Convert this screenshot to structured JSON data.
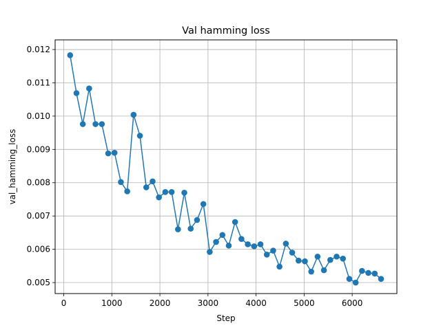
{
  "chart_data": {
    "type": "line",
    "title": "Val hamming loss",
    "xlabel": "Step",
    "ylabel": "val_hamming_loss",
    "xlim": [
      -180,
      6930
    ],
    "ylim": [
      0.00467,
      0.01229
    ],
    "xticks": [
      0,
      1000,
      2000,
      3000,
      4000,
      5000,
      6000
    ],
    "xtick_labels": [
      "0",
      "1000",
      "2000",
      "3000",
      "4000",
      "5000",
      "6000"
    ],
    "yticks": [
      0.005,
      0.006,
      0.007,
      0.008,
      0.009,
      0.01,
      0.011,
      0.012
    ],
    "ytick_labels": [
      "0.005",
      "0.006",
      "0.007",
      "0.008",
      "0.009",
      "0.010",
      "0.011",
      "0.012"
    ],
    "grid": true,
    "marker": "circle",
    "color": "#1f77b4",
    "series": [
      {
        "x": [
          132,
          264,
          396,
          528,
          660,
          792,
          924,
          1056,
          1188,
          1320,
          1452,
          1584,
          1716,
          1848,
          1980,
          2112,
          2244,
          2376,
          2508,
          2640,
          2772,
          2904,
          3036,
          3168,
          3300,
          3432,
          3564,
          3696,
          3828,
          3960,
          4092,
          4224,
          4356,
          4488,
          4620,
          4752,
          4884,
          5016,
          5148,
          5280,
          5412,
          5544,
          5676,
          5808,
          5940,
          6072,
          6204,
          6336,
          6468,
          6600
        ],
        "y": [
          0.01183,
          0.01069,
          0.00976,
          0.01083,
          0.00976,
          0.00976,
          0.00888,
          0.0089,
          0.00802,
          0.00774,
          0.01004,
          0.00941,
          0.00786,
          0.00804,
          0.00756,
          0.00772,
          0.00772,
          0.0066,
          0.0077,
          0.00662,
          0.00688,
          0.00736,
          0.00592,
          0.00622,
          0.00643,
          0.00611,
          0.00682,
          0.00631,
          0.00615,
          0.00609,
          0.00615,
          0.00584,
          0.00596,
          0.00548,
          0.00617,
          0.0059,
          0.00566,
          0.00564,
          0.00533,
          0.00578,
          0.00537,
          0.00568,
          0.00578,
          0.00572,
          0.00511,
          0.005,
          0.00535,
          0.00529,
          0.00527,
          0.00511
        ]
      }
    ]
  }
}
